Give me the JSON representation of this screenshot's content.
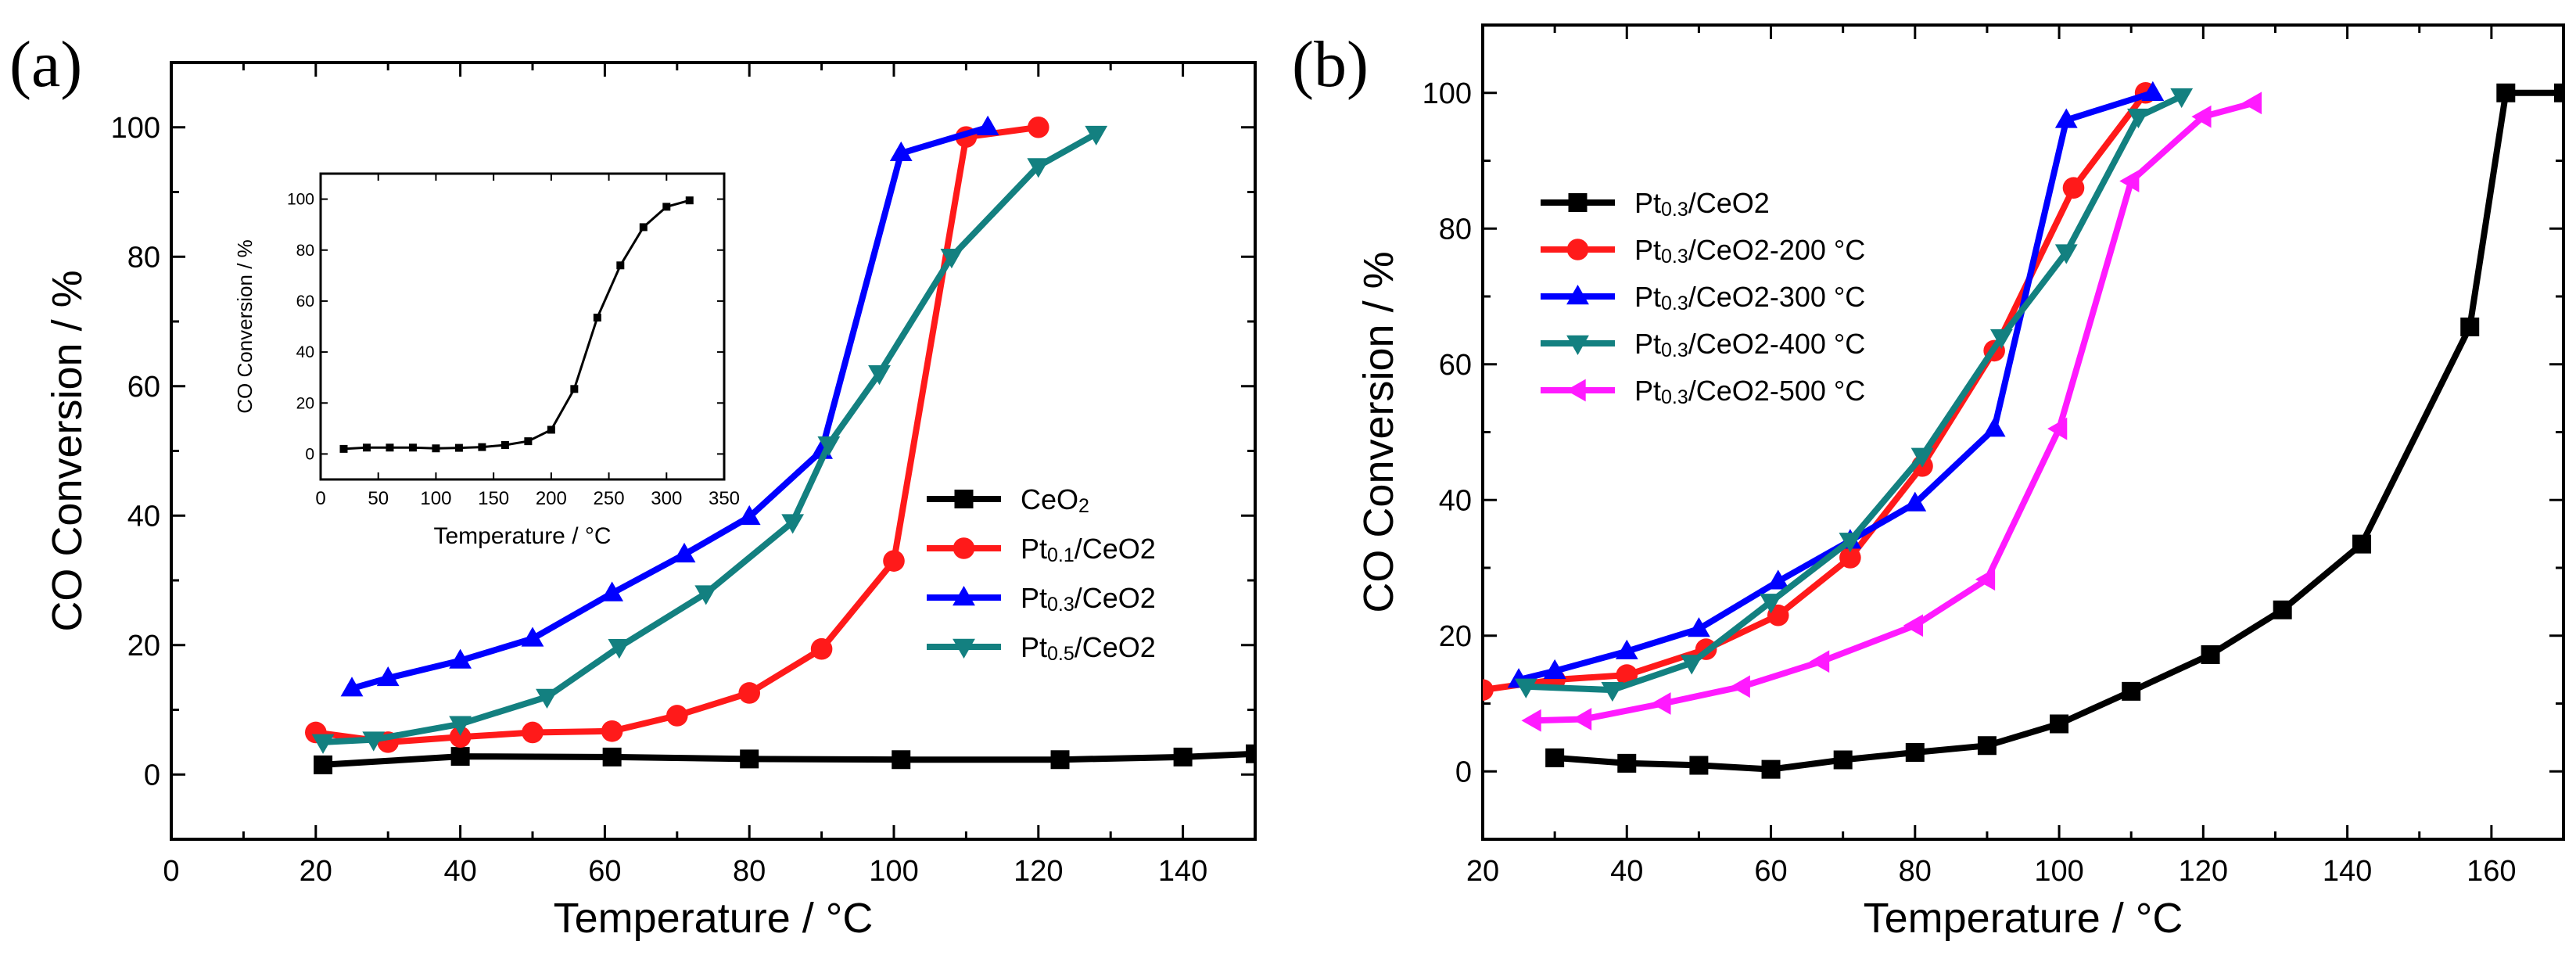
{
  "chart_data": [
    {
      "panel_label": "(a)",
      "type": "line",
      "xlabel": "Temperature / °C",
      "ylabel": "CO Conversion / %",
      "xlim": [
        0,
        150
      ],
      "ylim": [
        -10,
        110
      ],
      "xticks": [
        0,
        20,
        40,
        60,
        80,
        100,
        120,
        140
      ],
      "yticks": [
        0,
        20,
        40,
        60,
        80,
        100
      ],
      "legend": {
        "position": "bottom-right"
      },
      "series": [
        {
          "name": "CeO2",
          "label_main": "CeO",
          "label_sub": "2",
          "label_tail": "",
          "color": "#000000",
          "marker": "square",
          "x": [
            21,
            40,
            61,
            80,
            101,
            123,
            140,
            150
          ],
          "y": [
            1.5,
            2.8,
            2.7,
            2.4,
            2.3,
            2.3,
            2.7,
            3.2
          ]
        },
        {
          "name": "Pt0.1/CeO2",
          "label_main": "Pt",
          "label_sub": "0.1",
          "label_tail": "/CeO2",
          "color": "#ff1a1a",
          "marker": "circle",
          "x": [
            20,
            30,
            40,
            50,
            61,
            70,
            80,
            90,
            100,
            110,
            120
          ],
          "y": [
            6.5,
            5,
            5.8,
            6.5,
            6.7,
            9.1,
            12.6,
            19.4,
            33,
            98.5,
            100
          ]
        },
        {
          "name": "Pt0.3/CeO2",
          "label_main": "Pt",
          "label_sub": "0.3",
          "label_tail": "/CeO2",
          "color": "#0000ff",
          "marker": "triangle-up",
          "x": [
            25,
            30,
            40,
            50,
            61,
            71,
            80,
            90,
            101,
            113
          ],
          "y": [
            13.3,
            14.9,
            17.6,
            21,
            28,
            34,
            39.8,
            50,
            96,
            100
          ]
        },
        {
          "name": "Pt0.5/CeO2",
          "label_main": "Pt",
          "label_sub": "0.5",
          "label_tail": "/CeO2",
          "color": "#138080",
          "marker": "triangle-down",
          "x": [
            21,
            28,
            40,
            52,
            62,
            74,
            86,
            91,
            98,
            108,
            120,
            128
          ],
          "y": [
            5,
            5.4,
            7.8,
            12,
            19.7,
            28,
            39,
            51,
            62,
            80,
            94,
            99
          ]
        }
      ],
      "inset": {
        "type": "line",
        "xlabel": "Temperature / °C",
        "ylabel": "CO Conversion / %",
        "xlim": [
          0,
          350
        ],
        "ylim": [
          -10,
          110
        ],
        "xticks": [
          0,
          50,
          100,
          150,
          200,
          250,
          300,
          350
        ],
        "yticks": [
          0,
          20,
          40,
          60,
          80,
          100
        ],
        "series": [
          {
            "name": "inset",
            "color": "#000000",
            "marker": "square",
            "x": [
              20,
              40,
              60,
              80,
              100,
              120,
              140,
              160,
              180,
              200,
              220,
              240,
              260,
              280,
              300,
              320
            ],
            "y": [
              2,
              2.5,
              2.5,
              2.5,
              2.2,
              2.4,
              2.7,
              3.5,
              5,
              9.5,
              25.5,
              53.5,
              74,
              89,
              97,
              99.5
            ]
          }
        ]
      }
    },
    {
      "panel_label": "(b)",
      "type": "line",
      "xlabel": "Temperature / °C",
      "ylabel": "CO Conversion / %",
      "xlim": [
        20,
        170
      ],
      "ylim": [
        -10,
        110
      ],
      "xticks": [
        20,
        40,
        60,
        80,
        100,
        120,
        140,
        160
      ],
      "yticks": [
        0,
        20,
        40,
        60,
        80,
        100
      ],
      "legend": {
        "position": "top-left"
      },
      "series": [
        {
          "name": "Pt0.3/CeO2",
          "label_main": "Pt",
          "label_sub": "0.3",
          "label_tail": "/CeO2",
          "color": "#000000",
          "marker": "square",
          "x": [
            30,
            40,
            50,
            60,
            70,
            80,
            90,
            100,
            110,
            121,
            131,
            142,
            157,
            162,
            170
          ],
          "y": [
            2,
            1.2,
            0.9,
            0.3,
            1.7,
            2.8,
            3.8,
            7,
            11.8,
            17.2,
            23.8,
            33.5,
            65.5,
            100,
            100
          ]
        },
        {
          "name": "Pt0.3/CeO2-200 °C",
          "label_main": "Pt",
          "label_sub": "0.3",
          "label_tail": "/CeO2-200 °C",
          "color": "#ff1a1a",
          "marker": "circle",
          "x": [
            20,
            30,
            40,
            51,
            61,
            71,
            81,
            91,
            102,
            112
          ],
          "y": [
            12,
            13.5,
            14.2,
            18,
            23,
            31.5,
            45,
            62,
            86,
            100
          ]
        },
        {
          "name": "Pt0.3/CeO2-300 °C",
          "label_main": "Pt",
          "label_sub": "0.3",
          "label_tail": "/CeO2-300 °C",
          "color": "#0000ff",
          "marker": "triangle-up",
          "x": [
            25,
            30,
            40,
            50,
            61,
            71,
            80,
            91,
            101,
            113
          ],
          "y": [
            13.5,
            14.8,
            17.7,
            21,
            28,
            34,
            39.5,
            50.5,
            96,
            100
          ]
        },
        {
          "name": "Pt0.3/CeO2-400 °C",
          "label_main": "Pt",
          "label_sub": "0.3",
          "label_tail": "/CeO2-400 °C",
          "color": "#138080",
          "marker": "triangle-down",
          "x": [
            26,
            38,
            49,
            60,
            71,
            81,
            92,
            101,
            111,
            117
          ],
          "y": [
            12.5,
            12,
            16,
            25,
            34,
            46.5,
            64,
            76.5,
            96.5,
            99.5
          ]
        },
        {
          "name": "Pt0.3/CeO2-500 °C",
          "label_main": "Pt",
          "label_sub": "0.3",
          "label_tail": "/CeO2-500 °C",
          "color": "#ff1aff",
          "marker": "triangle-left",
          "x": [
            27,
            34,
            45,
            56,
            67,
            80,
            90,
            100,
            110,
            120,
            127
          ],
          "y": [
            7.5,
            7.7,
            10,
            12.5,
            16.2,
            21.5,
            28.3,
            50.5,
            87,
            96.5,
            98.5
          ]
        }
      ]
    }
  ]
}
